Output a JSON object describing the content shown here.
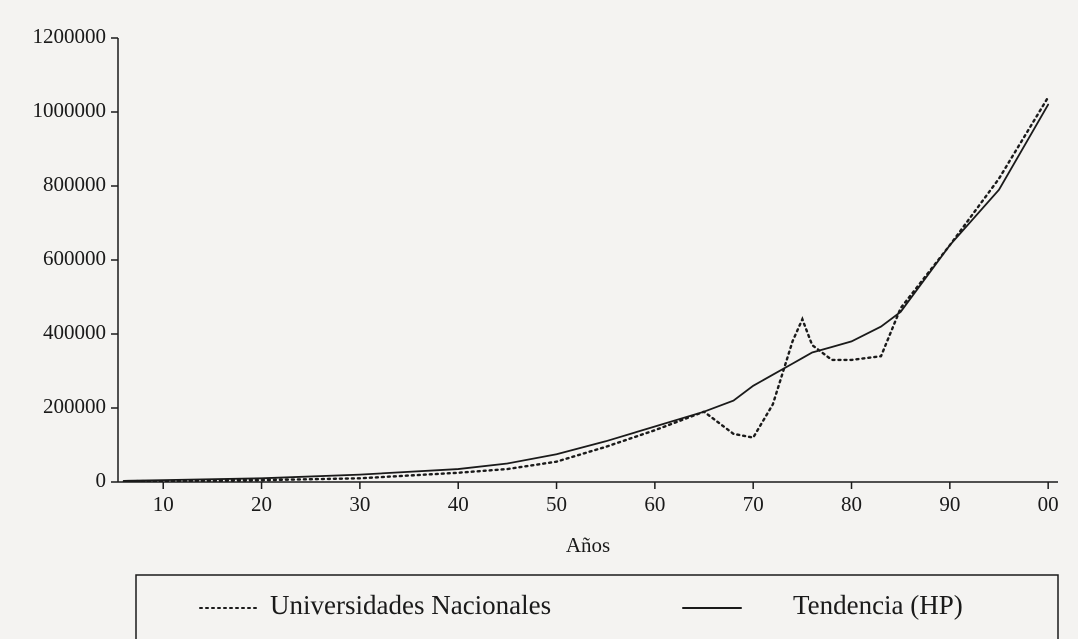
{
  "chart_data": {
    "type": "line",
    "x_label": "Años",
    "x": [
      6,
      10,
      20,
      30,
      40,
      45,
      50,
      55,
      60,
      65,
      68,
      70,
      72,
      74,
      75,
      76,
      78,
      80,
      83,
      85,
      90,
      95,
      100
    ],
    "series": [
      {
        "name": "Universidades Nacionales",
        "color": "#1a1a1a",
        "style": "dotted",
        "values": [
          2000,
          3000,
          5000,
          10000,
          25000,
          35000,
          55000,
          95000,
          140000,
          190000,
          130000,
          120000,
          210000,
          380000,
          440000,
          370000,
          330000,
          330000,
          340000,
          470000,
          640000,
          820000,
          1040000
        ]
      },
      {
        "name": "Tendencia (HP)",
        "color": "#1a1a1a",
        "style": "solid",
        "values": [
          3000,
          5000,
          10000,
          20000,
          35000,
          50000,
          75000,
          110000,
          150000,
          190000,
          220000,
          260000,
          290000,
          320000,
          335000,
          350000,
          365000,
          380000,
          420000,
          460000,
          640000,
          790000,
          1020000
        ]
      }
    ],
    "xlim": [
      5.4,
      101
    ],
    "xticks": [
      10,
      20,
      30,
      40,
      50,
      60,
      70,
      80,
      90,
      {
        "value": 100,
        "label": "00"
      }
    ],
    "ylim": [
      0,
      1200000
    ],
    "yticks": [
      0,
      200000,
      400000,
      600000,
      800000,
      1000000,
      1200000
    ]
  }
}
